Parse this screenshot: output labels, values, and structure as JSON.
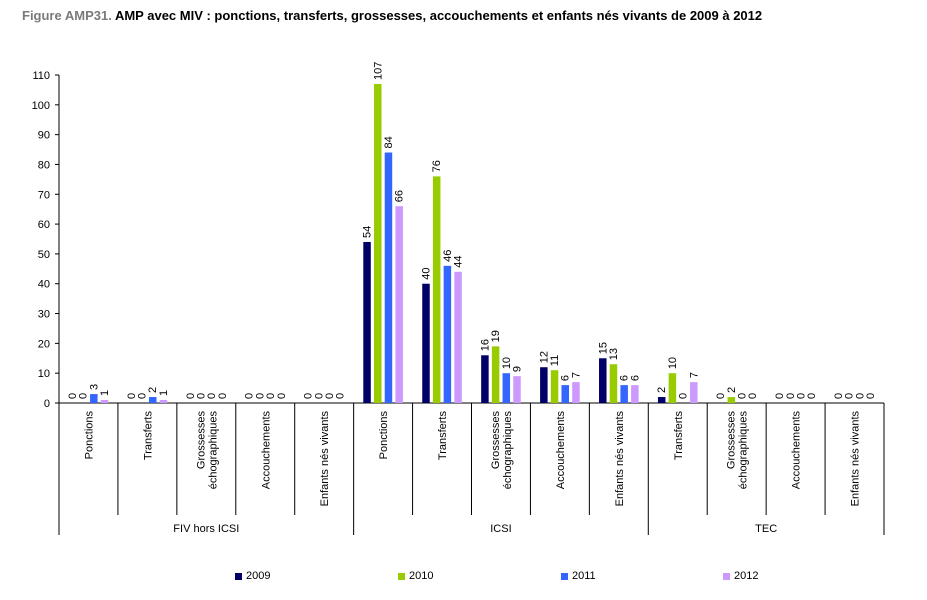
{
  "title": {
    "prefix": "Figure AMP31.",
    "text": "AMP avec MIV : ponctions, transferts, grossesses, accouchements et enfants nés vivants de 2009 à 2012"
  },
  "colors": {
    "2009": "#000066",
    "2010": "#99cc00",
    "2011": "#3366ff",
    "2012": "#cc99ff"
  },
  "chart_data": {
    "type": "bar",
    "title": "AMP avec MIV : ponctions, transferts, grossesses, accouchements et enfants nés vivants de 2009 à 2012",
    "xlabel": "",
    "ylabel": "",
    "ylim": [
      0,
      110
    ],
    "yticks": [
      0,
      10,
      20,
      30,
      40,
      50,
      60,
      70,
      80,
      90,
      100,
      110
    ],
    "grid": false,
    "legend_position": "bottom",
    "groups": [
      {
        "name": "FIV hors ICSI",
        "categories": [
          "Ponctions",
          "Transferts",
          "Grossesses échographiques",
          "Accouchements",
          "Enfants nés vivants"
        ]
      },
      {
        "name": "ICSI",
        "categories": [
          "Ponctions",
          "Transferts",
          "Grossesses échographiques",
          "Accouchements",
          "Enfants nés vivants"
        ]
      },
      {
        "name": "TEC",
        "categories": [
          "Transferts",
          "Grossesses échographiques",
          "Accouchements",
          "Enfants nés vivants"
        ]
      }
    ],
    "categories": [
      "FIV hors ICSI - Ponctions",
      "FIV hors ICSI - Transferts",
      "FIV hors ICSI - Grossesses échographiques",
      "FIV hors ICSI - Accouchements",
      "FIV hors ICSI - Enfants nés vivants",
      "ICSI - Ponctions",
      "ICSI - Transferts",
      "ICSI - Grossesses échographiques",
      "ICSI - Accouchements",
      "ICSI - Enfants nés vivants",
      "TEC - Transferts",
      "TEC - Grossesses échographiques",
      "TEC - Accouchements",
      "TEC - Enfants nés vivants"
    ],
    "series": [
      {
        "name": "2009",
        "values": [
          0,
          0,
          0,
          0,
          0,
          54,
          40,
          16,
          12,
          15,
          2,
          0,
          0,
          0
        ]
      },
      {
        "name": "2010",
        "values": [
          0,
          0,
          0,
          0,
          0,
          107,
          76,
          19,
          11,
          13,
          10,
          2,
          0,
          0
        ]
      },
      {
        "name": "2011",
        "values": [
          3,
          2,
          0,
          0,
          0,
          84,
          46,
          10,
          6,
          6,
          0,
          0,
          0,
          0
        ]
      },
      {
        "name": "2012",
        "values": [
          1,
          1,
          0,
          0,
          0,
          66,
          44,
          9,
          7,
          6,
          7,
          0,
          0,
          0
        ]
      }
    ]
  }
}
